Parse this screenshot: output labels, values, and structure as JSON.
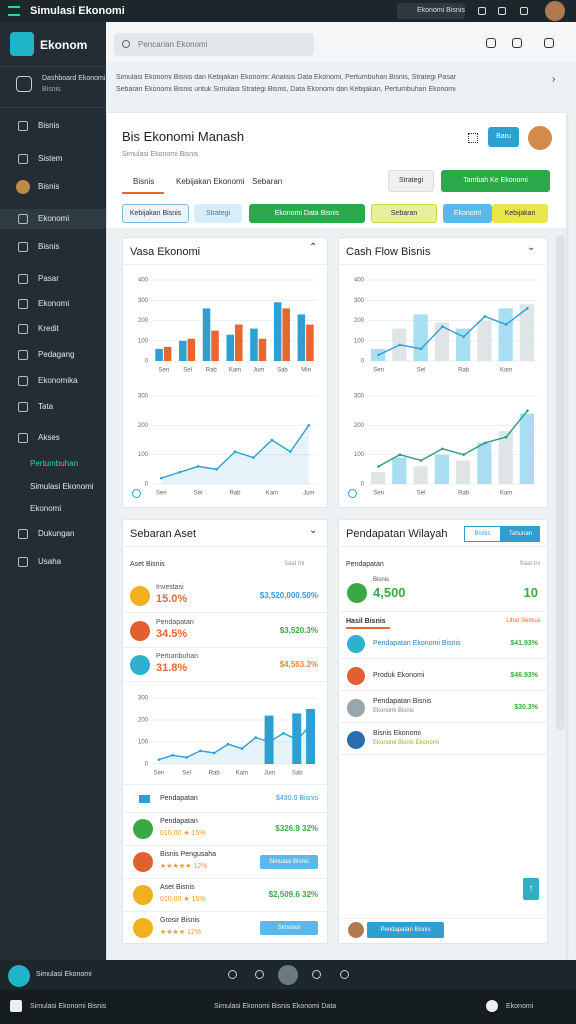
{
  "topbar": {
    "title": "Simulasi Ekonomi",
    "search": "Ekonomi Bisnis"
  },
  "sidebar": {
    "logo": "Ekonom",
    "profile": {
      "title": "Dashboard Ekonomi",
      "subtitle": "Bisnis"
    },
    "menu": [
      "Bisnis",
      "Sistem",
      "Bisnis",
      "Ekonomi",
      "Bisnis",
      "Pasar",
      "Ekonomi",
      "Kredit",
      "Pedagang",
      "Ekonomika",
      "Tata",
      "Akses",
      "Pertumbuhan",
      "Simulasi Ekonomi",
      "Ekonomi",
      "Dukungan",
      "Usaha"
    ]
  },
  "header": {
    "search": "Pencarian Ekonomi",
    "banner": [
      "Simulasi Ekonomi Bisnis dan Kebijakan Ekonomi: Analisis Data Ekonomi, Pertumbuhan Bisnis, Strategi Pasar",
      "Sebaran Ekonomi Bisnis untuk Simulasi Strategi Bisnis, Data Ekonomi dan Kebijakan, Pertumbuhan Ekonomi"
    ]
  },
  "panel": {
    "title": "Bis Ekonomi Manash",
    "subtitle": "Simulasi Ekonomi Bisnis",
    "button": "Baru",
    "tabs": [
      "Bisnis",
      "Kebijakan Ekonomi",
      "Sebaran"
    ],
    "actions": [
      "Strategi",
      "Tambah Ke Ekonomi"
    ],
    "filters": [
      "Kebijakan Bisnis",
      "Strategi",
      "Ekonomi Data Bisnis",
      "Sebaran",
      "Ekonomi",
      "Kebijakan"
    ]
  },
  "cards": [
    {
      "title": "Vasa Ekonomi",
      "charts": [
        {
          "type": "bar",
          "categories": [
            "Sen",
            "Sel",
            "Rab",
            "Kam",
            "Jum",
            "Sab",
            "Min"
          ],
          "ylim": [
            0,
            400
          ],
          "yticks": [
            0,
            100,
            200,
            300,
            400
          ],
          "grid": true,
          "series": [
            {
              "color": "#2f9fd0",
              "values": [
                60,
                100,
                260,
                130,
                160,
                290,
                230
              ]
            },
            {
              "color": "#e8672f",
              "values": [
                70,
                110,
                150,
                180,
                110,
                260,
                180
              ]
            }
          ]
        },
        {
          "type": "line",
          "area": true,
          "categories": [
            "Sen",
            null,
            "Sel",
            null,
            "Rab",
            null,
            "Kam",
            null,
            "Jum"
          ],
          "ylim": [
            0,
            300
          ],
          "yticks": [
            0,
            100,
            200,
            300
          ],
          "grid": true,
          "series": [
            {
              "color": "#2f9fd0",
              "values": [
                20,
                40,
                60,
                50,
                110,
                90,
                150,
                110,
                200
              ]
            }
          ]
        }
      ]
    },
    {
      "title": "Cash Flow Bisnis",
      "charts": [
        {
          "type": "combo",
          "categories": [
            "Sen",
            null,
            "Sel",
            null,
            "Rab",
            null,
            "Kam",
            null
          ],
          "ylim": [
            0,
            400
          ],
          "yticks": [
            0,
            100,
            200,
            300,
            400
          ],
          "grid": true,
          "series": [
            {
              "type": "bar",
              "colors": [
                "#a9def2",
                "#dfe4e7"
              ],
              "values": [
                60,
                160,
                230,
                190,
                160,
                200,
                260,
                280
              ]
            },
            {
              "type": "line",
              "color": "#2f9fd0",
              "values": [
                30,
                80,
                60,
                170,
                120,
                220,
                180,
                260
              ]
            }
          ]
        },
        {
          "type": "combo",
          "categories": [
            "Sen",
            null,
            "Sel",
            null,
            "Rab",
            null,
            "Kam",
            null
          ],
          "ylim": [
            0,
            300
          ],
          "yticks": [
            0,
            100,
            200,
            300
          ],
          "grid": true,
          "series": [
            {
              "type": "bar",
              "colors": [
                "#dfe4e7",
                "#a9def2"
              ],
              "values": [
                40,
                90,
                60,
                100,
                80,
                140,
                180,
                240
              ]
            },
            {
              "type": "line",
              "color": "#2a9c80",
              "values": [
                60,
                100,
                80,
                120,
                100,
                140,
                160,
                250
              ]
            }
          ]
        }
      ]
    },
    {
      "title": "Sebaran Aset",
      "list_header": [
        "Aset Bisnis",
        "Saat Ini"
      ],
      "rows": [
        {
          "name": "Investasi",
          "pct": "15.0%",
          "value": "$3,520,000.50%",
          "icon_color": "#f0b020",
          "value_color": "#2f9fd0"
        },
        {
          "name": "Pendapatan",
          "pct": "34.5%",
          "value": "$3,520.3%",
          "icon_color": "#e06030",
          "value_color": "#3aa845"
        },
        {
          "name": "Pertumbuhan",
          "pct": "31.8%",
          "value": "$4,563.3%",
          "icon_color": "#2fb0d0",
          "value_color": "#e8872f"
        }
      ],
      "chart": {
        "type": "combo",
        "area": true,
        "categories": [
          "Sen",
          null,
          "Sel",
          null,
          "Rab",
          null,
          "Kam",
          null,
          "Jum",
          null,
          "Sab",
          null
        ],
        "ylim": [
          0,
          300
        ],
        "yticks": [
          0,
          100,
          200,
          300
        ],
        "grid": true,
        "series": [
          {
            "type": "line",
            "color": "#2f9fd0",
            "values": [
              20,
              40,
              30,
              60,
              50,
              90,
              70,
              120,
              100,
              140,
              110,
              180
            ]
          },
          {
            "type": "bar",
            "color": "#2f9fd0",
            "values": [
              null,
              null,
              null,
              null,
              null,
              null,
              null,
              null,
              220,
              null,
              230,
              250
            ]
          }
        ]
      },
      "list2_header": [
        "Pendapatan",
        "$430.0 Bisnis"
      ],
      "rows2": [
        {
          "name": "Pendapatan",
          "sub": "010,00 ★ 15%",
          "value": "$326.9 32%",
          "icon_color": "#3aa845"
        },
        {
          "name": "Bisnis Pengusaha",
          "sub": "★★★★★ 12%",
          "value": "Simulasi Bisnis",
          "pill": true,
          "icon_color": "#e06030"
        },
        {
          "name": "Aset Bisnis",
          "sub": "010.00 ★ 15%",
          "value": "$2,509.6 32%",
          "icon_color": "#f0b020"
        },
        {
          "name": "Grosir Bisnis",
          "sub": "★★★★ 12%",
          "value": "Simulasi",
          "pill": true,
          "icon_color": "#f0b020"
        }
      ]
    },
    {
      "title": "Pendapatan Wilayah",
      "toggles": [
        "Bisnis",
        "Tahunan"
      ],
      "list_header": [
        "Pendapatan",
        "Saat Ini"
      ],
      "big": {
        "label": "Bisnis",
        "value": "4,500",
        "side": "10"
      },
      "section": [
        "Hasil Bisnis",
        "Lihat Semua"
      ],
      "rows": [
        {
          "name": "Pendapatan Ekonomi Bisnis",
          "value": "$41.93%",
          "icon_color": "#2fb0d0"
        },
        {
          "name": "Produk Ekonomi",
          "value": "$46.93%",
          "icon_color": "#e06030"
        },
        {
          "name": "Pendapatan Bisnis",
          "sub": "Ekonomi Bisnis",
          "value": "$30.3%",
          "icon_color": "#9aa6ad"
        },
        {
          "name": "Bisnis Ekonomi",
          "sub": "Ekonomi Bisnis Ekonomi",
          "icon_color": "#2a6fb0"
        }
      ],
      "footer_pill": "Pendapatan Bisnis"
    }
  ],
  "bottombar": {
    "label": "Simulasi Ekonomi"
  },
  "footer": {
    "left": "Simulasi Ekonomi Bisnis",
    "center": "Simulasi Ekonomi Bisnis Ekonomi Data",
    "right": "Ekonomi"
  }
}
